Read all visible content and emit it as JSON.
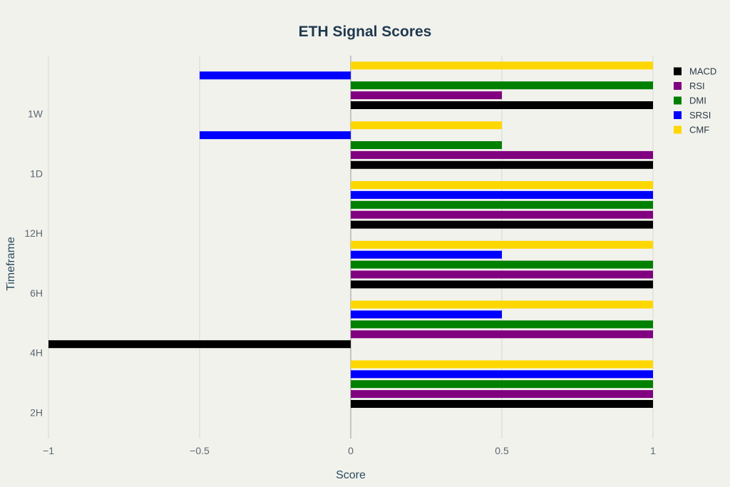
{
  "chart_data": {
    "type": "bar",
    "orientation": "horizontal",
    "title": "ETH Signal Scores",
    "xlabel": "Score",
    "ylabel": "Timeframe",
    "xlim": [
      -1,
      1
    ],
    "xticks": [
      -1,
      -0.5,
      0,
      0.5,
      1
    ],
    "xtick_labels": [
      "−1",
      "−0.5",
      "0",
      "0.5",
      "1"
    ],
    "categories": [
      "2H",
      "4H",
      "6H",
      "12H",
      "1D",
      "1W"
    ],
    "grid": true,
    "legend_position": "top-right",
    "series": [
      {
        "name": "MACD",
        "color": "#000000",
        "values": [
          1,
          -1,
          1,
          1,
          1,
          1
        ]
      },
      {
        "name": "RSI",
        "color": "#800080",
        "values": [
          1,
          1,
          1,
          1,
          1,
          0.5
        ]
      },
      {
        "name": "DMI",
        "color": "#008000",
        "values": [
          1,
          1,
          1,
          1,
          0.5,
          1
        ]
      },
      {
        "name": "SRSI",
        "color": "#0000ff",
        "values": [
          1,
          0.5,
          0.5,
          1,
          -0.5,
          -0.5
        ]
      },
      {
        "name": "CMF",
        "color": "#ffd700",
        "values": [
          1,
          1,
          1,
          1,
          0.5,
          1
        ]
      }
    ]
  }
}
